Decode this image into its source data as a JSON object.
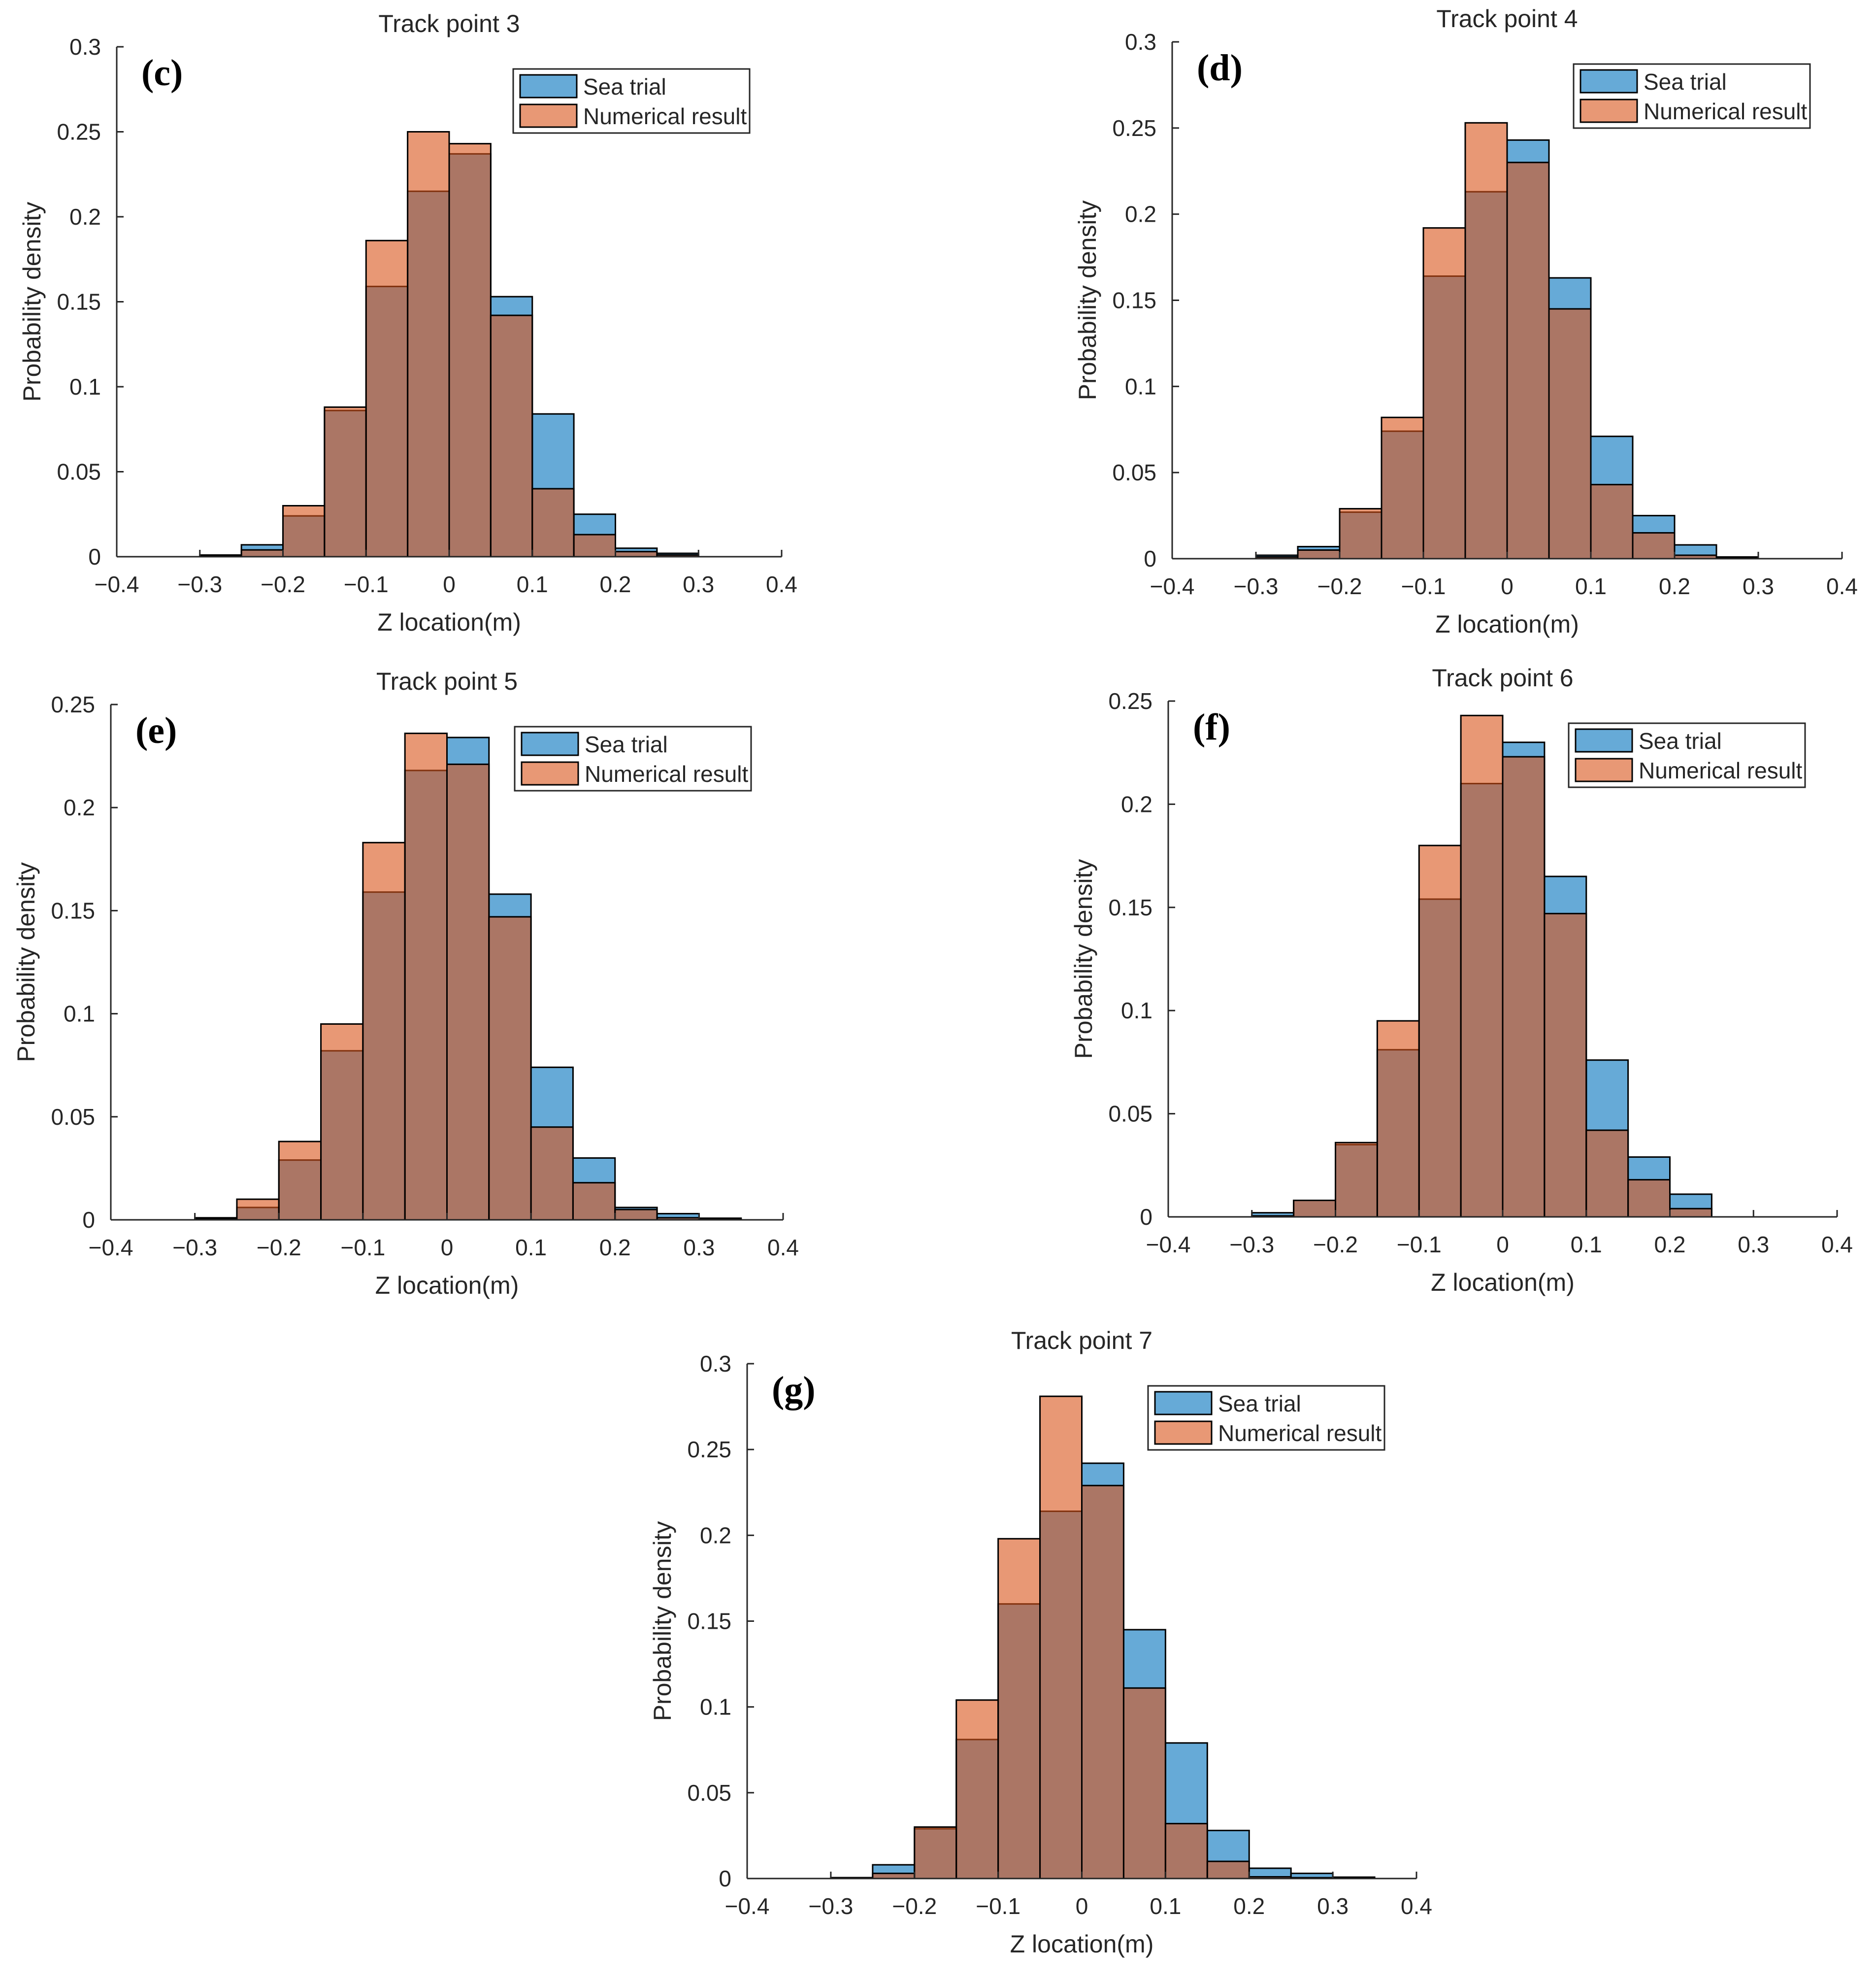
{
  "figure": {
    "colors": {
      "sea_trial": "#0072BD",
      "numerical": "#D95319",
      "overlap": "#A67362",
      "axis": "#262626",
      "legend_border": "#262626"
    },
    "legend": {
      "sea_trial_label": "Sea trial",
      "numerical_label": "Numerical result"
    },
    "xlabel": "Z location(m)",
    "ylabel": "Probability density"
  },
  "chart_data": [
    {
      "id": "c",
      "panel_label": "(c)",
      "type": "bar",
      "title": "Track point 3",
      "xlabel": "Z location(m)",
      "ylabel": "Probability density",
      "xlim": [
        -0.4,
        0.4
      ],
      "ylim": [
        0,
        0.3
      ],
      "xticks": [
        -0.4,
        -0.3,
        -0.2,
        -0.1,
        0,
        0.1,
        0.2,
        0.3,
        0.4
      ],
      "xtick_labels": [
        "−0.4",
        "−0.3",
        "−0.2",
        "−0.1",
        "0",
        "0.1",
        "0.2",
        "0.3",
        "0.4"
      ],
      "yticks": [
        0,
        0.05,
        0.1,
        0.15,
        0.2,
        0.25,
        0.3
      ],
      "ytick_labels": [
        "0",
        "0.05",
        "0.1",
        "0.15",
        "0.2",
        "0.25",
        "0.3"
      ],
      "bin_edges": [
        -0.3,
        -0.25,
        -0.2,
        -0.15,
        -0.1,
        -0.05,
        0,
        0.05,
        0.1,
        0.15,
        0.2,
        0.25,
        0.3
      ],
      "legend_position": "top-right",
      "series": [
        {
          "name": "Sea trial",
          "values": [
            0.001,
            0.007,
            0.024,
            0.086,
            0.159,
            0.215,
            0.237,
            0.153,
            0.084,
            0.025,
            0.005,
            0.002
          ]
        },
        {
          "name": "Numerical result",
          "values": [
            0.0005,
            0.004,
            0.03,
            0.088,
            0.186,
            0.25,
            0.243,
            0.142,
            0.04,
            0.013,
            0.003,
            0.001
          ]
        }
      ]
    },
    {
      "id": "d",
      "panel_label": "(d)",
      "type": "bar",
      "title": "Track point 4",
      "xlabel": "Z location(m)",
      "ylabel": "Probability density",
      "xlim": [
        -0.4,
        0.4
      ],
      "ylim": [
        0,
        0.3
      ],
      "xticks": [
        -0.4,
        -0.3,
        -0.2,
        -0.1,
        0,
        0.1,
        0.2,
        0.3,
        0.4
      ],
      "xtick_labels": [
        "−0.4",
        "−0.3",
        "−0.2",
        "−0.1",
        "0",
        "0.1",
        "0.2",
        "0.3",
        "0.4"
      ],
      "yticks": [
        0,
        0.05,
        0.1,
        0.15,
        0.2,
        0.25,
        0.3
      ],
      "ytick_labels": [
        "0",
        "0.05",
        "0.1",
        "0.15",
        "0.2",
        "0.25",
        "0.3"
      ],
      "bin_edges": [
        -0.3,
        -0.25,
        -0.2,
        -0.15,
        -0.1,
        -0.05,
        0,
        0.05,
        0.1,
        0.15,
        0.2,
        0.25,
        0.3
      ],
      "legend_position": "top-right",
      "series": [
        {
          "name": "Sea trial",
          "values": [
            0.002,
            0.007,
            0.027,
            0.074,
            0.164,
            0.213,
            0.243,
            0.163,
            0.071,
            0.025,
            0.008,
            0.001
          ]
        },
        {
          "name": "Numerical result",
          "values": [
            0.001,
            0.005,
            0.029,
            0.082,
            0.192,
            0.253,
            0.23,
            0.145,
            0.043,
            0.015,
            0.002,
            0.0005
          ]
        }
      ]
    },
    {
      "id": "e",
      "panel_label": "(e)",
      "type": "bar",
      "title": "Track point 5",
      "xlabel": "Z location(m)",
      "ylabel": "Probability density",
      "xlim": [
        -0.4,
        0.4
      ],
      "ylim": [
        0,
        0.25
      ],
      "xticks": [
        -0.4,
        -0.3,
        -0.2,
        -0.1,
        0,
        0.1,
        0.2,
        0.3,
        0.4
      ],
      "xtick_labels": [
        "−0.4",
        "−0.3",
        "−0.2",
        "−0.1",
        "0",
        "0.1",
        "0.2",
        "0.3",
        "0.4"
      ],
      "yticks": [
        0,
        0.05,
        0.1,
        0.15,
        0.2,
        0.25
      ],
      "ytick_labels": [
        "0",
        "0.05",
        "0.1",
        "0.15",
        "0.2",
        "0.25"
      ],
      "bin_edges": [
        -0.3,
        -0.25,
        -0.2,
        -0.15,
        -0.1,
        -0.05,
        0,
        0.05,
        0.1,
        0.15,
        0.2,
        0.25,
        0.3,
        0.35
      ],
      "legend_position": "top-right",
      "series": [
        {
          "name": "Sea trial",
          "values": [
            0.001,
            0.006,
            0.029,
            0.082,
            0.159,
            0.218,
            0.234,
            0.158,
            0.074,
            0.03,
            0.006,
            0.003,
            0.0008
          ]
        },
        {
          "name": "Numerical result",
          "values": [
            0.0005,
            0.01,
            0.038,
            0.095,
            0.183,
            0.236,
            0.221,
            0.147,
            0.045,
            0.018,
            0.005,
            0.001,
            0.0005
          ]
        }
      ]
    },
    {
      "id": "f",
      "panel_label": "(f)",
      "type": "bar",
      "title": "Track point 6",
      "xlabel": "Z location(m)",
      "ylabel": "Probability density",
      "xlim": [
        -0.4,
        0.4
      ],
      "ylim": [
        0,
        0.25
      ],
      "xticks": [
        -0.4,
        -0.3,
        -0.2,
        -0.1,
        0,
        0.1,
        0.2,
        0.3,
        0.4
      ],
      "xtick_labels": [
        "−0.4",
        "−0.3",
        "−0.2",
        "−0.1",
        "0",
        "0.1",
        "0.2",
        "0.3",
        "0.4"
      ],
      "yticks": [
        0,
        0.05,
        0.1,
        0.15,
        0.2,
        0.25
      ],
      "ytick_labels": [
        "0",
        "0.05",
        "0.1",
        "0.15",
        "0.2",
        "0.25"
      ],
      "bin_edges": [
        -0.3,
        -0.25,
        -0.2,
        -0.15,
        -0.1,
        -0.05,
        0,
        0.05,
        0.1,
        0.15,
        0.2,
        0.25
      ],
      "legend_position": "top-right",
      "series": [
        {
          "name": "Sea trial",
          "values": [
            0.002,
            0.008,
            0.035,
            0.081,
            0.154,
            0.21,
            0.23,
            0.165,
            0.076,
            0.029,
            0.011
          ]
        },
        {
          "name": "Numerical result",
          "values": [
            0.0005,
            0.008,
            0.036,
            0.095,
            0.18,
            0.243,
            0.223,
            0.147,
            0.042,
            0.018,
            0.004
          ]
        }
      ]
    },
    {
      "id": "g",
      "panel_label": "(g)",
      "type": "bar",
      "title": "Track point 7",
      "xlabel": "Z location(m)",
      "ylabel": "Probability density",
      "xlim": [
        -0.4,
        0.4
      ],
      "ylim": [
        0,
        0.3
      ],
      "xticks": [
        -0.4,
        -0.3,
        -0.2,
        -0.1,
        0,
        0.1,
        0.2,
        0.3,
        0.4
      ],
      "xtick_labels": [
        "−0.4",
        "−0.3",
        "−0.2",
        "−0.1",
        "0",
        "0.1",
        "0.2",
        "0.3",
        "0.4"
      ],
      "yticks": [
        0,
        0.05,
        0.1,
        0.15,
        0.2,
        0.25,
        0.3
      ],
      "ytick_labels": [
        "0",
        "0.05",
        "0.1",
        "0.15",
        "0.2",
        "0.25",
        "0.3"
      ],
      "bin_edges": [
        -0.3,
        -0.25,
        -0.2,
        -0.15,
        -0.1,
        -0.05,
        0,
        0.05,
        0.1,
        0.15,
        0.2,
        0.25,
        0.3,
        0.35
      ],
      "legend_position": "top-right",
      "series": [
        {
          "name": "Sea trial",
          "values": [
            0.0005,
            0.008,
            0.029,
            0.081,
            0.16,
            0.214,
            0.242,
            0.145,
            0.079,
            0.028,
            0.006,
            0.003,
            0.0008
          ]
        },
        {
          "name": "Numerical result",
          "values": [
            0.0005,
            0.003,
            0.03,
            0.104,
            0.198,
            0.281,
            0.229,
            0.111,
            0.032,
            0.01,
            0.001,
            0.0005,
            0.0003
          ]
        }
      ]
    }
  ]
}
